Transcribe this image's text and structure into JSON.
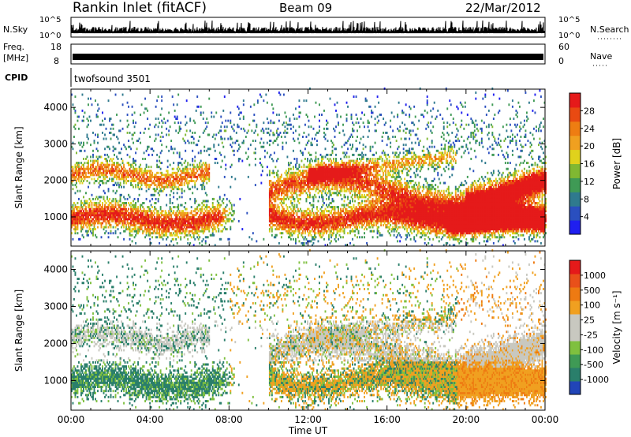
{
  "header": {
    "station": "Rankin Inlet (fitACF)",
    "beam": "Beam 09",
    "date": "22/Mar/2012"
  },
  "aux_panels": {
    "nsky_label": "N.Sky",
    "nsearch_label": "N.Search",
    "nsky_ticks": [
      "10^5",
      "10^0"
    ],
    "nsearch_ticks": [
      "10^5",
      "10^0"
    ],
    "freq_label_1": "Freq.",
    "freq_label_2": "[MHz]",
    "freq_ticks": [
      "18",
      "8"
    ],
    "nave_label": "Nave",
    "nave_ticks": [
      "60",
      "0"
    ],
    "cpid_label": "CPID",
    "cpid_value": "twofsound 3501"
  },
  "chart_data": [
    {
      "type": "heatmap",
      "name": "power",
      "ylabel": "Slant Range [km]",
      "xlabel": "",
      "ylim": [
        200,
        4500
      ],
      "xlim_hours": [
        0,
        24
      ],
      "ytick_labels": [
        "1000",
        "2000",
        "3000",
        "4000"
      ],
      "ytick_values": [
        1000,
        2000,
        3000,
        4000
      ],
      "colorbar": {
        "label": "Power [dB]",
        "tick_labels": [
          "4",
          "8",
          "12",
          "16",
          "20",
          "24",
          "28"
        ],
        "range": [
          0,
          32
        ],
        "colors": [
          "#1f1ff0",
          "#2a4fbf",
          "#2f7a8e",
          "#3f9a55",
          "#80b832",
          "#e0d21c",
          "#f0a020",
          "#ee7d12",
          "#e94a12",
          "#e51a1a"
        ]
      }
    },
    {
      "type": "heatmap",
      "name": "velocity",
      "ylabel": "Slant Range [km]",
      "xlabel": "Time UT",
      "ylim": [
        200,
        4500
      ],
      "xlim_hours": [
        0,
        24
      ],
      "ytick_labels": [
        "1000",
        "2000",
        "3000",
        "4000"
      ],
      "ytick_values": [
        1000,
        2000,
        3000,
        4000
      ],
      "xtick_labels": [
        "00:00",
        "04:00",
        "08:00",
        "12:00",
        "16:00",
        "20:00",
        "00:00"
      ],
      "xtick_values": [
        0,
        4,
        8,
        12,
        16,
        20,
        24
      ],
      "colorbar": {
        "label": "Velocity [m s⁻¹]",
        "tick_labels": [
          "1000",
          "500",
          "100",
          "25",
          "-25",
          "-100",
          "-500",
          "-1000"
        ],
        "colors": [
          "#2145b8",
          "#2a7f6b",
          "#3f9a55",
          "#7fc03f",
          "#c8c8c0",
          "#c8c8c0",
          "#f0a020",
          "#ee7a12",
          "#e9501a",
          "#e51a1a"
        ]
      }
    }
  ],
  "colors": {
    "ground_scatter": "#c8c8c0",
    "axis": "#000000"
  }
}
